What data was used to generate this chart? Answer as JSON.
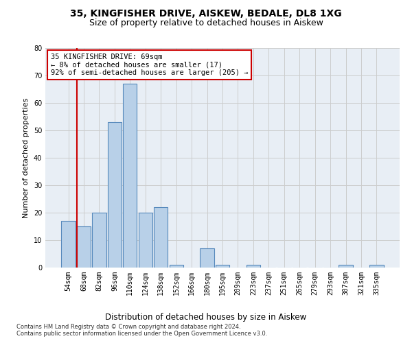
{
  "title1": "35, KINGFISHER DRIVE, AISKEW, BEDALE, DL8 1XG",
  "title2": "Size of property relative to detached houses in Aiskew",
  "xlabel": "Distribution of detached houses by size in Aiskew",
  "ylabel": "Number of detached properties",
  "categories": [
    "54sqm",
    "68sqm",
    "82sqm",
    "96sqm",
    "110sqm",
    "124sqm",
    "138sqm",
    "152sqm",
    "166sqm",
    "180sqm",
    "195sqm",
    "209sqm",
    "223sqm",
    "237sqm",
    "251sqm",
    "265sqm",
    "279sqm",
    "293sqm",
    "307sqm",
    "321sqm",
    "335sqm"
  ],
  "values": [
    17,
    15,
    20,
    53,
    67,
    20,
    22,
    1,
    0,
    7,
    1,
    0,
    1,
    0,
    0,
    0,
    0,
    0,
    1,
    0,
    1
  ],
  "bar_color": "#b8d0e8",
  "bar_edge_color": "#5588bb",
  "vline_index": 1,
  "annotation_line1": "35 KINGFISHER DRIVE: 69sqm",
  "annotation_line2": "← 8% of detached houses are smaller (17)",
  "annotation_line3": "92% of semi-detached houses are larger (205) →",
  "annotation_box_color": "#ffffff",
  "annotation_box_edge": "#cc0000",
  "vline_color": "#cc0000",
  "ylim": [
    0,
    80
  ],
  "yticks": [
    0,
    10,
    20,
    30,
    40,
    50,
    60,
    70,
    80
  ],
  "grid_color": "#cccccc",
  "bg_color": "#e8eef5",
  "footnote1": "Contains HM Land Registry data © Crown copyright and database right 2024.",
  "footnote2": "Contains public sector information licensed under the Open Government Licence v3.0.",
  "title1_fontsize": 10,
  "title2_fontsize": 9,
  "xlabel_fontsize": 8.5,
  "ylabel_fontsize": 8,
  "tick_fontsize": 7,
  "annotation_fontsize": 7.5,
  "footnote_fontsize": 6
}
